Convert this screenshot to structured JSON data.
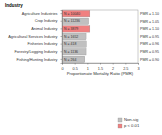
{
  "chart_data": {
    "type": "bar",
    "title": "Industry",
    "orientation": "horizontal",
    "categories": [
      "Agriculture Industries",
      "Crop Industry",
      "Animal Industry",
      "Agricultural Services Industry",
      "Fisheries Industry",
      "Forestry/Logging Industry",
      "Fishing/Hunting Industry"
    ],
    "series": [
      {
        "name": "Non-sig",
        "color": "#c0c0c0",
        "values": [
          null,
          1.05,
          null,
          0.95,
          0.96,
          0.95,
          0.9
        ],
        "value_labels": [
          null,
          "PMR = 1.05",
          null,
          "PMR = 0.95",
          "PMR = 0.96",
          "PMR = 0.95",
          "PMR = 0.90"
        ]
      },
      {
        "name": "p < 0.01",
        "color": "#f08080",
        "values": [
          1.1,
          null,
          1.1,
          null,
          null,
          null,
          null
        ],
        "value_labels": [
          "PMR = 1.10",
          null,
          "PMR = 1.10",
          null,
          null,
          null,
          null
        ]
      }
    ],
    "n_labels": [
      "N = 10040",
      "N = 11236",
      "N = 3879",
      "N = 1652",
      "N = 418",
      "N = 1136",
      "N = 264"
    ],
    "xlabel": "Proportionate Mortality Ratio (PMR)",
    "xlim": [
      0,
      3
    ],
    "xticks": [
      0,
      0.5,
      1,
      1.5,
      2,
      2.5,
      3
    ],
    "data_labels": true,
    "legend": "bottom-right",
    "grid": false
  }
}
